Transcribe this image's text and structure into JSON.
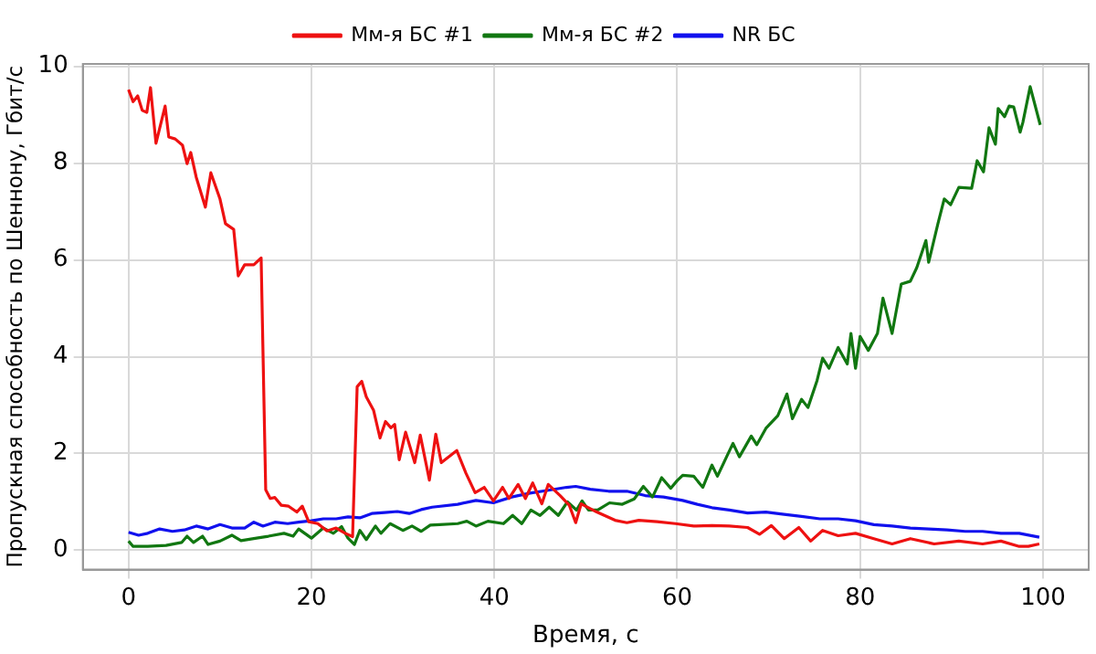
{
  "chart_data": {
    "type": "line",
    "xlabel": "Время, с",
    "ylabel": "Пропускная способность по Шеннону, Гбит/с",
    "xlim": [
      -5,
      105
    ],
    "ylim": [
      -0.4,
      10.05
    ],
    "xticks": [
      0,
      20,
      40,
      60,
      80,
      100
    ],
    "yticks": [
      0,
      2,
      4,
      6,
      8,
      10
    ],
    "grid": true,
    "legend": "top",
    "marker": "none",
    "line_style": "solid",
    "series": [
      {
        "name": "Мм-я БС #1",
        "color": "#ee1111",
        "x": [
          0,
          0.5,
          1,
          1.5,
          2,
          2.4,
          3,
          4,
          4.4,
          5.1,
          5.9,
          6.4,
          6.8,
          7.4,
          8.4,
          9,
          10,
          10.6,
          11.5,
          12,
          12.7,
          13.7,
          14.5,
          15,
          15.5,
          16,
          16.7,
          17.5,
          18.4,
          19,
          19.7,
          20.7,
          21.7,
          22.7,
          23.7,
          24.5,
          25,
          25.5,
          26,
          26.8,
          27.5,
          28.1,
          28.7,
          29.1,
          29.6,
          30.3,
          31.3,
          31.9,
          32.9,
          33.6,
          34.2,
          35.9,
          36.9,
          37.9,
          38.9,
          39.9,
          40.9,
          41.6,
          42.6,
          43.4,
          44.2,
          45.2,
          45.9,
          47.2,
          48.2,
          48.9,
          49.5,
          51.2,
          53.2,
          54.5,
          55.8,
          57.8,
          59.8,
          61.8,
          63.8,
          65.7,
          67.7,
          69,
          70.3,
          71.7,
          73.3,
          74.6,
          75.9,
          77.6,
          79.5,
          81.5,
          83.5,
          85.5,
          88.1,
          90.8,
          93.4,
          95.4,
          97.4,
          98.4,
          99.6
        ],
        "values": [
          9.52,
          9.27,
          9.39,
          9.09,
          9.05,
          9.56,
          8.41,
          9.18,
          8.54,
          8.5,
          8.37,
          7.99,
          8.22,
          7.71,
          7.09,
          7.8,
          7.26,
          6.75,
          6.63,
          5.67,
          5.9,
          5.9,
          6.04,
          1.25,
          1.07,
          1.09,
          0.93,
          0.91,
          0.79,
          0.91,
          0.59,
          0.55,
          0.4,
          0.46,
          0.35,
          0.28,
          3.38,
          3.49,
          3.17,
          2.89,
          2.32,
          2.66,
          2.53,
          2.6,
          1.87,
          2.44,
          1.81,
          2.38,
          1.45,
          2.4,
          1.81,
          2.06,
          1.59,
          1.19,
          1.3,
          1.02,
          1.3,
          1.07,
          1.36,
          1.07,
          1.39,
          0.96,
          1.36,
          1.13,
          0.93,
          0.57,
          0.96,
          0.79,
          0.62,
          0.57,
          0.62,
          0.59,
          0.55,
          0.5,
          0.51,
          0.5,
          0.47,
          0.33,
          0.51,
          0.24,
          0.47,
          0.19,
          0.41,
          0.3,
          0.35,
          0.24,
          0.13,
          0.24,
          0.13,
          0.19,
          0.13,
          0.19,
          0.08,
          0.08,
          0.13
        ]
      },
      {
        "name": "Мм-я БС #2",
        "color": "#117711",
        "x": [
          0,
          0.5,
          2.1,
          4.1,
          5.8,
          6.4,
          7.1,
          8.1,
          8.7,
          10,
          11.3,
          12.3,
          14,
          15.3,
          17,
          18,
          18.6,
          20,
          21.3,
          22.4,
          23.3,
          24,
          24.7,
          25.3,
          26,
          27,
          27.6,
          28.6,
          30,
          31,
          32,
          33,
          34,
          36,
          37,
          38,
          39.3,
          41,
          42,
          43,
          44,
          45,
          46,
          47,
          48,
          49,
          49.6,
          50.3,
          51.3,
          52.6,
          54,
          55.3,
          56.3,
          57.3,
          58.3,
          59.3,
          60,
          60.6,
          61.8,
          62.8,
          63.8,
          64.4,
          65.4,
          66.1,
          66.8,
          68.1,
          68.7,
          69.7,
          71,
          72,
          72.6,
          73.6,
          74.3,
          75.3,
          75.9,
          76.6,
          77.6,
          78.6,
          79,
          79.5,
          80,
          80.9,
          81.9,
          82.5,
          83.5,
          84.5,
          85.5,
          86.2,
          87.2,
          87.5,
          88.5,
          89.2,
          89.9,
          90.8,
          92.2,
          92.8,
          93.5,
          94.1,
          94.8,
          95.1,
          95.8,
          96.3,
          96.8,
          97.5,
          97.8,
          98.6,
          99.7
        ],
        "values": [
          0.19,
          0.08,
          0.08,
          0.1,
          0.16,
          0.29,
          0.16,
          0.29,
          0.12,
          0.19,
          0.31,
          0.2,
          0.25,
          0.29,
          0.35,
          0.29,
          0.44,
          0.25,
          0.46,
          0.35,
          0.49,
          0.25,
          0.12,
          0.41,
          0.22,
          0.5,
          0.35,
          0.55,
          0.41,
          0.5,
          0.39,
          0.52,
          0.53,
          0.55,
          0.6,
          0.5,
          0.6,
          0.55,
          0.72,
          0.55,
          0.83,
          0.72,
          0.89,
          0.72,
          1.0,
          0.83,
          1.02,
          0.83,
          0.83,
          0.98,
          0.95,
          1.06,
          1.32,
          1.1,
          1.5,
          1.28,
          1.44,
          1.55,
          1.53,
          1.3,
          1.76,
          1.53,
          1.93,
          2.21,
          1.93,
          2.36,
          2.18,
          2.52,
          2.78,
          3.23,
          2.72,
          3.12,
          2.95,
          3.51,
          3.97,
          3.76,
          4.19,
          3.85,
          4.48,
          3.76,
          4.42,
          4.13,
          4.48,
          5.21,
          4.48,
          5.5,
          5.56,
          5.84,
          6.4,
          5.95,
          6.74,
          7.26,
          7.14,
          7.5,
          7.48,
          8.05,
          7.82,
          8.73,
          8.39,
          9.13,
          8.96,
          9.18,
          9.16,
          8.64,
          8.84,
          9.58,
          8.79
        ]
      },
      {
        "name": "NR БС",
        "color": "#1111ee",
        "x": [
          0,
          1.1,
          2.1,
          3.4,
          4.8,
          6.1,
          7.4,
          8.7,
          10,
          11.3,
          12.7,
          13.7,
          14.7,
          16,
          17.4,
          18.6,
          20,
          21.3,
          22.7,
          24,
          25.3,
          26.6,
          28,
          29.4,
          30.7,
          32,
          33.2,
          36,
          38,
          39.9,
          41.9,
          43.9,
          45.9,
          47.9,
          48.9,
          50.5,
          52.5,
          54.5,
          56.5,
          58.5,
          60.6,
          62.2,
          63.8,
          65.7,
          67.7,
          69.7,
          71.7,
          73.6,
          75.6,
          77.6,
          79.5,
          81.5,
          83.5,
          85.5,
          87.5,
          89.5,
          91.5,
          93.4,
          95.4,
          97.4,
          99.6
        ],
        "values": [
          0.37,
          0.31,
          0.35,
          0.44,
          0.39,
          0.42,
          0.5,
          0.44,
          0.53,
          0.46,
          0.46,
          0.58,
          0.5,
          0.58,
          0.55,
          0.58,
          0.61,
          0.65,
          0.65,
          0.69,
          0.67,
          0.76,
          0.78,
          0.8,
          0.76,
          0.84,
          0.89,
          0.95,
          1.03,
          0.98,
          1.1,
          1.18,
          1.24,
          1.3,
          1.32,
          1.26,
          1.22,
          1.22,
          1.13,
          1.1,
          1.03,
          0.95,
          0.88,
          0.83,
          0.77,
          0.79,
          0.74,
          0.7,
          0.65,
          0.65,
          0.61,
          0.53,
          0.5,
          0.46,
          0.44,
          0.42,
          0.39,
          0.39,
          0.35,
          0.35,
          0.27
        ]
      }
    ]
  }
}
